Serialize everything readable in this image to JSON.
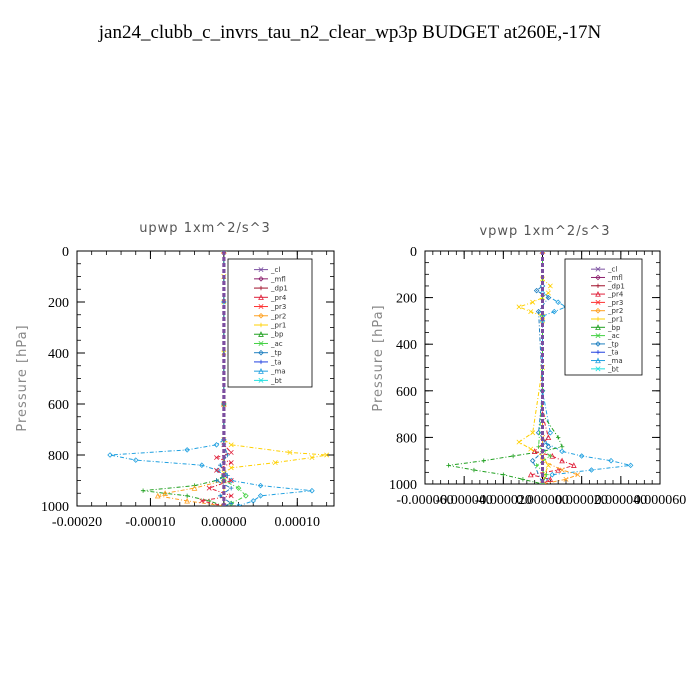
{
  "title": "jan24_clubb_c_invrs_tau_n2_clear_wp3p  BUDGET at260E,-17N",
  "legend_entries": [
    "_cl",
    "_mfl",
    "_dp1",
    "_pr4",
    "_pr3",
    "_pr2",
    "_pr1",
    "_bp",
    "_ac",
    "_tp",
    "_ta",
    "_ma",
    "_bt"
  ],
  "series_colors": {
    "_cl": "#7a4ea0",
    "_mfl": "#8b1e6b",
    "_dp1": "#a0102a",
    "_pr4": "#e0203a",
    "_pr3": "#ff3030",
    "_pr2": "#ffa020",
    "_pr1": "#ffd000",
    "_bp": "#20a020",
    "_ac": "#40d040",
    "_tp": "#2080c0",
    "_ta": "#2040e0",
    "_ma": "#20a0e0",
    "_bt": "#20e0e0"
  },
  "chart_data": [
    {
      "type": "line",
      "title": "upwp   1xm^2/s^3",
      "ylabel": "Pressure [hPa]",
      "xlim": [
        -0.0002,
        0.00015
      ],
      "ylim": [
        1000,
        0
      ],
      "xticks": [
        -0.0002,
        -0.0001,
        0.0,
        0.0001
      ],
      "xtick_labels": [
        "-0.00020",
        "-0.00010",
        "0.00000",
        "0.00010"
      ],
      "yticks": [
        0,
        200,
        400,
        600,
        800,
        1000
      ],
      "ytick_labels": [
        "0",
        "200",
        "400",
        "600",
        "800",
        "1000"
      ],
      "legend_position": "top-right",
      "series": [
        {
          "name": "_pr1",
          "y": [
            0,
            100,
            200,
            400,
            600,
            740,
            760,
            790,
            800,
            810,
            830,
            850,
            870,
            900,
            1000
          ],
          "x": [
            0,
            0,
            0,
            0,
            0,
            0,
            1e-05,
            9e-05,
            0.00014,
            0.00012,
            7e-05,
            1e-05,
            0,
            0,
            0
          ]
        },
        {
          "name": "_ma",
          "y": [
            0,
            200,
            600,
            740,
            760,
            780,
            800,
            820,
            840,
            860,
            880,
            900,
            920,
            940,
            960,
            980,
            1000
          ],
          "x": [
            0,
            0,
            0,
            0,
            -1e-05,
            -5e-05,
            -0.000155,
            -0.00012,
            -3e-05,
            -8e-06,
            0,
            1e-05,
            5e-05,
            0.00012,
            5e-05,
            4e-05,
            2e-05
          ]
        },
        {
          "name": "_bp",
          "y": [
            0,
            600,
            880,
            900,
            920,
            940,
            950,
            960,
            980,
            1000
          ],
          "x": [
            0,
            0,
            0,
            -1e-05,
            -4e-05,
            -0.00011,
            -8e-05,
            -5e-05,
            -2e-05,
            0
          ]
        },
        {
          "name": "_pr2",
          "y": [
            0,
            600,
            900,
            930,
            950,
            960,
            980,
            1000
          ],
          "x": [
            0,
            0,
            0,
            -4e-05,
            -8e-05,
            -9e-05,
            -5e-05,
            0
          ]
        },
        {
          "name": "_pr4",
          "y": [
            0,
            600,
            760,
            790,
            810,
            830,
            860,
            900,
            930,
            960,
            980,
            1000
          ],
          "x": [
            0,
            0,
            0,
            1e-05,
            -1e-05,
            1e-05,
            -1e-05,
            1e-05,
            -2e-05,
            1e-05,
            -3e-05,
            0
          ]
        },
        {
          "name": "_ac",
          "y": [
            0,
            600,
            900,
            930,
            960,
            990,
            1000
          ],
          "x": [
            0,
            0,
            0,
            2e-05,
            3e-05,
            1e-05,
            0
          ]
        },
        {
          "name": "_tp",
          "y": [
            0,
            600,
            760,
            800,
            840,
            880,
            900,
            930,
            960,
            990,
            1000
          ],
          "x": [
            0,
            0,
            0,
            5e-06,
            -5e-06,
            5e-06,
            -1e-05,
            1e-05,
            -5e-06,
            1e-05,
            0
          ]
        },
        {
          "name": "_mfl",
          "y": [
            0,
            1000
          ],
          "x": [
            0,
            0
          ]
        },
        {
          "name": "_cl",
          "y": [
            0,
            1000
          ],
          "x": [
            0,
            0
          ]
        }
      ]
    },
    {
      "type": "line",
      "title": "vpwp   1xm^2/s^3",
      "ylabel": "Pressure [hPa]",
      "xlim": [
        -6e-05,
        6e-05
      ],
      "ylim": [
        1000,
        0
      ],
      "xticks": [
        -6e-05,
        -4e-05,
        -2e-05,
        0.0,
        2e-05,
        4e-05,
        6e-05
      ],
      "xtick_labels": [
        "-0.000060",
        "-0.000040",
        "-0.000020",
        "0.000000",
        "0.000020",
        "0.000040",
        "0.000060"
      ],
      "yticks": [
        0,
        200,
        400,
        600,
        800,
        1000
      ],
      "ytick_labels": [
        "0",
        "200",
        "400",
        "600",
        "800",
        "1000"
      ],
      "legend_position": "top-right",
      "series": [
        {
          "name": "_pr1",
          "y": [
            0,
            120,
            150,
            180,
            200,
            220,
            240,
            260,
            280,
            300,
            500,
            780,
            820,
            850,
            880,
            920,
            960,
            1000
          ],
          "x": [
            0,
            0,
            4e-06,
            3e-06,
            0,
            -5e-06,
            -1.2e-05,
            -6e-06,
            0,
            0,
            0,
            -5e-06,
            -1.2e-05,
            -6e-06,
            0,
            3e-06,
            1e-06,
            0
          ]
        },
        {
          "name": "_ma",
          "y": [
            0,
            180,
            220,
            240,
            260,
            280,
            300,
            600,
            780,
            820,
            860,
            880,
            900,
            920,
            940,
            960,
            1000
          ],
          "x": [
            0,
            0,
            8e-06,
            1.2e-05,
            6e-06,
            0,
            0,
            0,
            4e-06,
            1e-06,
            1e-05,
            2e-05,
            3.5e-05,
            4.5e-05,
            2.5e-05,
            5e-06,
            0
          ]
        },
        {
          "name": "_bp",
          "y": [
            0,
            700,
            800,
            840,
            860,
            880,
            900,
            920,
            940,
            960,
            980,
            1000
          ],
          "x": [
            0,
            0,
            8e-06,
            1e-05,
            0,
            -1.5e-05,
            -3e-05,
            -4.8e-05,
            -3.5e-05,
            -2e-05,
            -1e-05,
            0
          ]
        },
        {
          "name": "_pr4",
          "y": [
            0,
            700,
            800,
            860,
            880,
            900,
            920,
            940,
            960,
            980,
            1000
          ],
          "x": [
            0,
            0,
            3e-06,
            -4e-06,
            5e-06,
            1e-05,
            1.6e-05,
            8e-06,
            -6e-06,
            4e-06,
            0
          ]
        },
        {
          "name": "_pr2",
          "y": [
            0,
            800,
            900,
            940,
            960,
            980,
            1000
          ],
          "x": [
            0,
            0,
            0,
            1e-05,
            1.8e-05,
            1.2e-05,
            0
          ]
        },
        {
          "name": "_tp",
          "y": [
            0,
            150,
            170,
            200,
            260,
            600,
            780,
            840,
            900,
            1000
          ],
          "x": [
            0,
            0,
            -3e-06,
            3e-06,
            -2e-06,
            0,
            -2e-06,
            3e-06,
            -5e-06,
            0
          ]
        },
        {
          "name": "_ac",
          "y": [
            0,
            600,
            840,
            880,
            920,
            960,
            1000
          ],
          "x": [
            0,
            0,
            -2e-06,
            4e-06,
            -3e-06,
            2e-06,
            0
          ]
        },
        {
          "name": "_mfl",
          "y": [
            0,
            1000
          ],
          "x": [
            0,
            0
          ]
        },
        {
          "name": "_cl",
          "y": [
            0,
            1000
          ],
          "x": [
            0,
            0
          ]
        }
      ]
    }
  ]
}
